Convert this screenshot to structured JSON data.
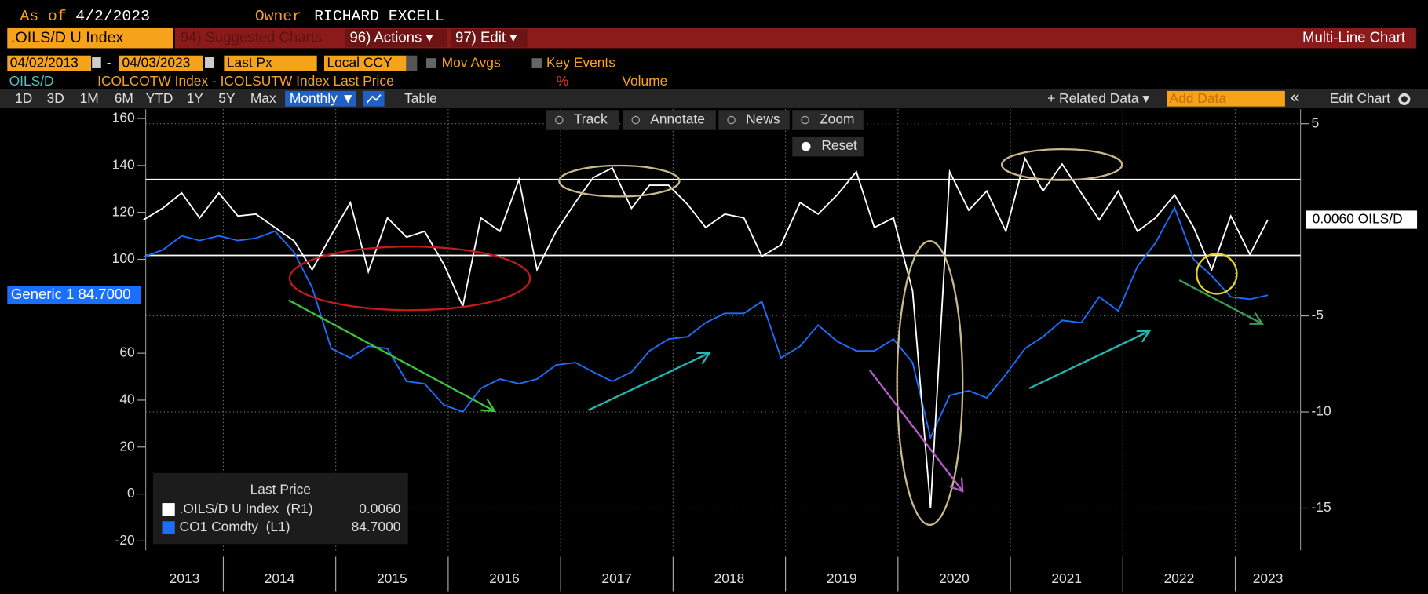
{
  "header": {
    "as_of_label": "As of",
    "as_of": "4/2/2023",
    "owner_label": "Owner",
    "owner": "RICHARD EXCELL",
    "security": ".OILS/D U Index",
    "menu": [
      "94) Suggested Charts",
      "96) Actions ▾",
      "97) Edit ▾"
    ],
    "view": "Multi-Line Chart"
  },
  "controls": {
    "start": "04/02/2013",
    "dash": "-",
    "end": "04/03/2023",
    "field": "Last Px",
    "currency": "Local CCY",
    "mov_avgs": "Mov Avgs",
    "key_events": "Key Events",
    "series_line": {
      "name": "OILS/D",
      "desc": "ICOLCOTW Index - ICOLSUTW Index Last Price",
      "pct": "%",
      "volume": "Volume"
    },
    "periods": [
      "1D",
      "3D",
      "1M",
      "6M",
      "YTD",
      "1Y",
      "5Y",
      "Max"
    ],
    "frequency": "Monthly ▼",
    "table": "Table",
    "related": "+ Related Data ▾",
    "add_data": "Add Data",
    "collapse": "«",
    "edit_chart": "Edit Chart",
    "tools": [
      "Track",
      "Annotate",
      "News",
      "Zoom"
    ],
    "reset": "Reset"
  },
  "chart_data": {
    "type": "line",
    "legend_title": "Last Price",
    "x": [
      2013.29,
      2013.46,
      2013.63,
      2013.79,
      2013.96,
      2014.13,
      2014.29,
      2014.46,
      2014.63,
      2014.79,
      2014.96,
      2015.13,
      2015.29,
      2015.46,
      2015.63,
      2015.79,
      2015.96,
      2016.13,
      2016.29,
      2016.46,
      2016.63,
      2016.79,
      2016.96,
      2017.13,
      2017.29,
      2017.46,
      2017.63,
      2017.79,
      2017.96,
      2018.13,
      2018.29,
      2018.46,
      2018.63,
      2018.79,
      2018.96,
      2019.13,
      2019.29,
      2019.46,
      2019.63,
      2019.79,
      2019.96,
      2020.13,
      2020.29,
      2020.46,
      2020.63,
      2020.79,
      2020.96,
      2021.13,
      2021.29,
      2021.46,
      2021.63,
      2021.79,
      2021.96,
      2022.13,
      2022.29,
      2022.46,
      2022.63,
      2022.79,
      2022.96,
      2023.13,
      2023.29
    ],
    "series": [
      {
        "name": ".OILS/D U Index  (R1)",
        "color": "#ffffff",
        "axis": "y2",
        "last_label": "0.0060",
        "tag": "0.0060 OILS/D",
        "values": [
          0,
          0.6,
          1.4,
          0.1,
          1.4,
          0.2,
          0.3,
          -0.4,
          -1.1,
          -2.6,
          -0.8,
          0.9,
          -2.7,
          0.1,
          -0.9,
          -0.6,
          -2.3,
          -4.5,
          0.1,
          -0.6,
          2.1,
          -2.6,
          -0.6,
          0.9,
          2.2,
          2.7,
          0.6,
          1.8,
          1.8,
          0.8,
          -0.4,
          0.3,
          0.1,
          -1.9,
          -1.3,
          0.9,
          0.3,
          1.3,
          2.5,
          -0.4,
          0.1,
          -3.7,
          -15,
          2.5,
          0.5,
          1.5,
          -0.6,
          3.2,
          1.5,
          2.9,
          1.4,
          0,
          1.5,
          -0.6,
          0.1,
          1.3,
          -0.4,
          -2.6,
          0.2,
          -1.8,
          0.006
        ]
      },
      {
        "name": "CO1 Comdty  (L1)",
        "color": "#1a6fff",
        "axis": "y",
        "last_label": "84.7000",
        "tag": "Generic 1 84.7000",
        "values": [
          101,
          104,
          110,
          108,
          110,
          108,
          109,
          112,
          103,
          88,
          62,
          58,
          63,
          62,
          48,
          47,
          38,
          35,
          45,
          49,
          47,
          49,
          55,
          56,
          52,
          48,
          52,
          61,
          66,
          67,
          73,
          77,
          77,
          82,
          58,
          63,
          72,
          65,
          61,
          61,
          66,
          56,
          24,
          42,
          44,
          41,
          51,
          62,
          67,
          74,
          73,
          84,
          78,
          97,
          107,
          122,
          100,
          93,
          84,
          83,
          84.7
        ]
      }
    ],
    "xlim": [
      2013.31,
      2023.58
    ],
    "xticks": [
      2013,
      2014,
      2015,
      2016,
      2017,
      2018,
      2019,
      2020,
      2021,
      2022,
      2023
    ],
    "ylim": [
      -24,
      164
    ],
    "yticks": [
      -20,
      0,
      20,
      40,
      60,
      100,
      120,
      140,
      160
    ],
    "y2lim": [
      -17.2,
      5.76
    ],
    "y2ticks": [
      5,
      -5,
      -10,
      -15
    ],
    "hlines": [
      2.1,
      -1.85
    ],
    "hline_color": "#ffffff",
    "grid": true
  }
}
